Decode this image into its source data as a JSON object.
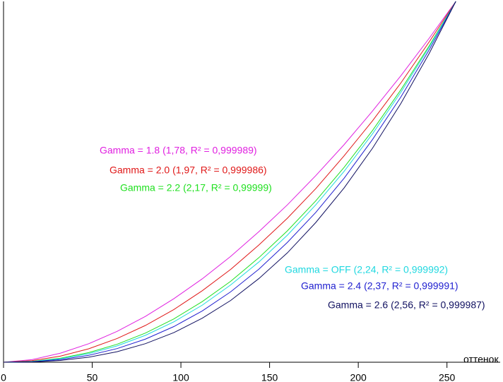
{
  "chart_data": {
    "type": "line",
    "x_label": "оттенок",
    "x": [
      0,
      16,
      32,
      48,
      64,
      80,
      96,
      112,
      128,
      144,
      160,
      176,
      192,
      208,
      224,
      240,
      255
    ],
    "xlim": [
      0,
      280
    ],
    "xticks": [
      0,
      50,
      100,
      150,
      200,
      250
    ],
    "ylim": [
      0,
      1
    ],
    "series": [
      {
        "name": "Gamma = 1.8 (1,78, R² = 0,999989)",
        "color": "#e020e0",
        "values": [
          0,
          0.0072,
          0.0249,
          0.0512,
          0.0854,
          0.127,
          0.176,
          0.231,
          0.293,
          0.362,
          0.436,
          0.517,
          0.603,
          0.696,
          0.794,
          0.898,
          1
        ]
      },
      {
        "name": "Gamma = 2.0 (1,97, R² = 0,999986)",
        "color": "#e01818",
        "values": [
          0,
          0.0043,
          0.0168,
          0.0372,
          0.0657,
          0.102,
          0.146,
          0.198,
          0.257,
          0.325,
          0.399,
          0.481,
          0.572,
          0.669,
          0.774,
          0.888,
          1
        ]
      },
      {
        "name": "Gamma = 2.2 (2,17, R² = 0,99999)",
        "color": "#20e020",
        "values": [
          0,
          0.0025,
          0.0111,
          0.0267,
          0.0498,
          0.0808,
          0.12,
          0.168,
          0.224,
          0.29,
          0.364,
          0.447,
          0.54,
          0.642,
          0.755,
          0.877,
          1
        ]
      },
      {
        "name": "Gamma = OFF (2,24, R² = 0,999992)",
        "color": "#20d8e0",
        "values": [
          0,
          0.002,
          0.0096,
          0.0237,
          0.0452,
          0.0746,
          0.112,
          0.158,
          0.214,
          0.278,
          0.352,
          0.436,
          0.529,
          0.633,
          0.748,
          0.873,
          1
        ]
      },
      {
        "name": "Gamma = 2.4 (2,37, R² = 0,999991)",
        "color": "#2020d0",
        "values": [
          0,
          0.0014,
          0.0073,
          0.0191,
          0.0378,
          0.0641,
          0.0988,
          0.142,
          0.195,
          0.258,
          0.332,
          0.415,
          0.51,
          0.617,
          0.735,
          0.866,
          1
        ]
      },
      {
        "name": "Gamma = 2.6 (2,56, R² = 0,999987)",
        "color": "#101060",
        "values": [
          0,
          0.0008,
          0.0049,
          0.0139,
          0.0291,
          0.0515,
          0.082,
          0.122,
          0.171,
          0.232,
          0.303,
          0.387,
          0.483,
          0.593,
          0.717,
          0.856,
          1
        ]
      }
    ]
  }
}
